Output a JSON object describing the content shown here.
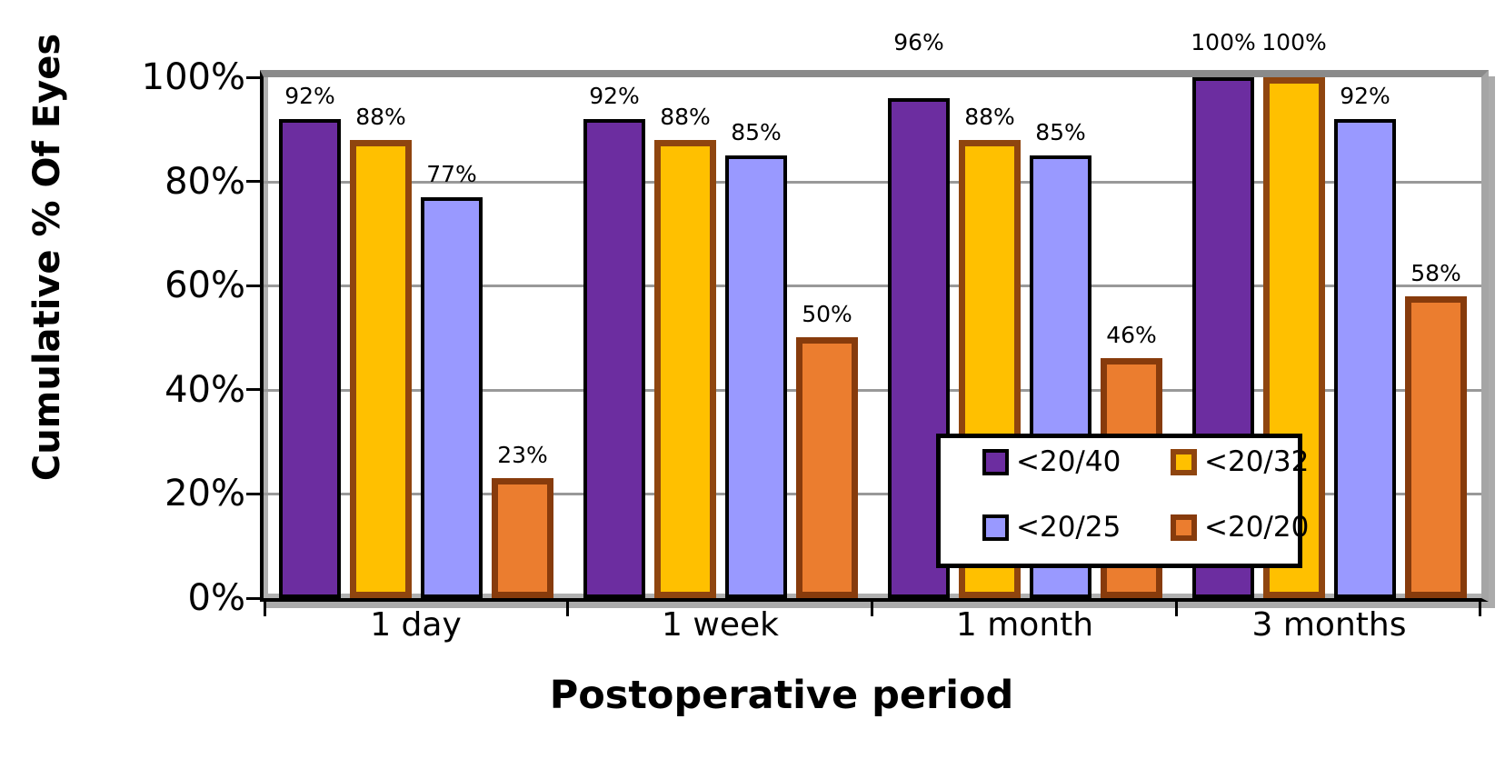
{
  "chart_data": {
    "type": "bar",
    "title": "",
    "ylabel": "Cumulative % Of Eyes",
    "xlabel": "Postoperative period",
    "categories": [
      "1 day",
      "1 week",
      "1 month",
      "3 months"
    ],
    "series": [
      {
        "name": "<20/40",
        "fill": "#6C2DA0",
        "border": "#000000",
        "values": [
          92,
          92,
          96,
          100
        ],
        "labels": [
          "92%",
          "92%",
          "96%",
          "100%"
        ]
      },
      {
        "name": "<20/32",
        "fill": "#FFC000",
        "border": "#8F450F",
        "values": [
          88,
          88,
          88,
          100
        ],
        "labels": [
          "88%",
          "88%",
          "88%",
          "100%"
        ]
      },
      {
        "name": "<20/25",
        "fill": "#9999FF",
        "border": "#000000",
        "values": [
          77,
          85,
          85,
          92
        ],
        "labels": [
          "77%",
          "85%",
          "85%",
          "92%"
        ]
      },
      {
        "name": "<20/20",
        "fill": "#EB7D2F",
        "border": "#873B0C",
        "values": [
          23,
          50,
          46,
          58
        ],
        "labels": [
          "23%",
          "50%",
          "46%",
          "58%"
        ]
      }
    ],
    "y_tick_values": [
      0,
      20,
      40,
      60,
      80,
      100
    ],
    "y_ticks": [
      "0%",
      "20%",
      "40%",
      "60%",
      "80%",
      "100%"
    ],
    "gridline_values": [
      20,
      40,
      60,
      80
    ],
    "ylim": [
      0,
      100
    ],
    "grid": true,
    "legend_position": "inside-bottom-right",
    "value_label_format": "percent",
    "colors": {
      "gridline": "#999999",
      "plot_top_border": "#8A8A8A",
      "plot_right_border": "#A5A5A5",
      "axis": "#000000",
      "shadow": "#ABABAB",
      "background": "#FFFFFF",
      "text": "#000000"
    }
  }
}
